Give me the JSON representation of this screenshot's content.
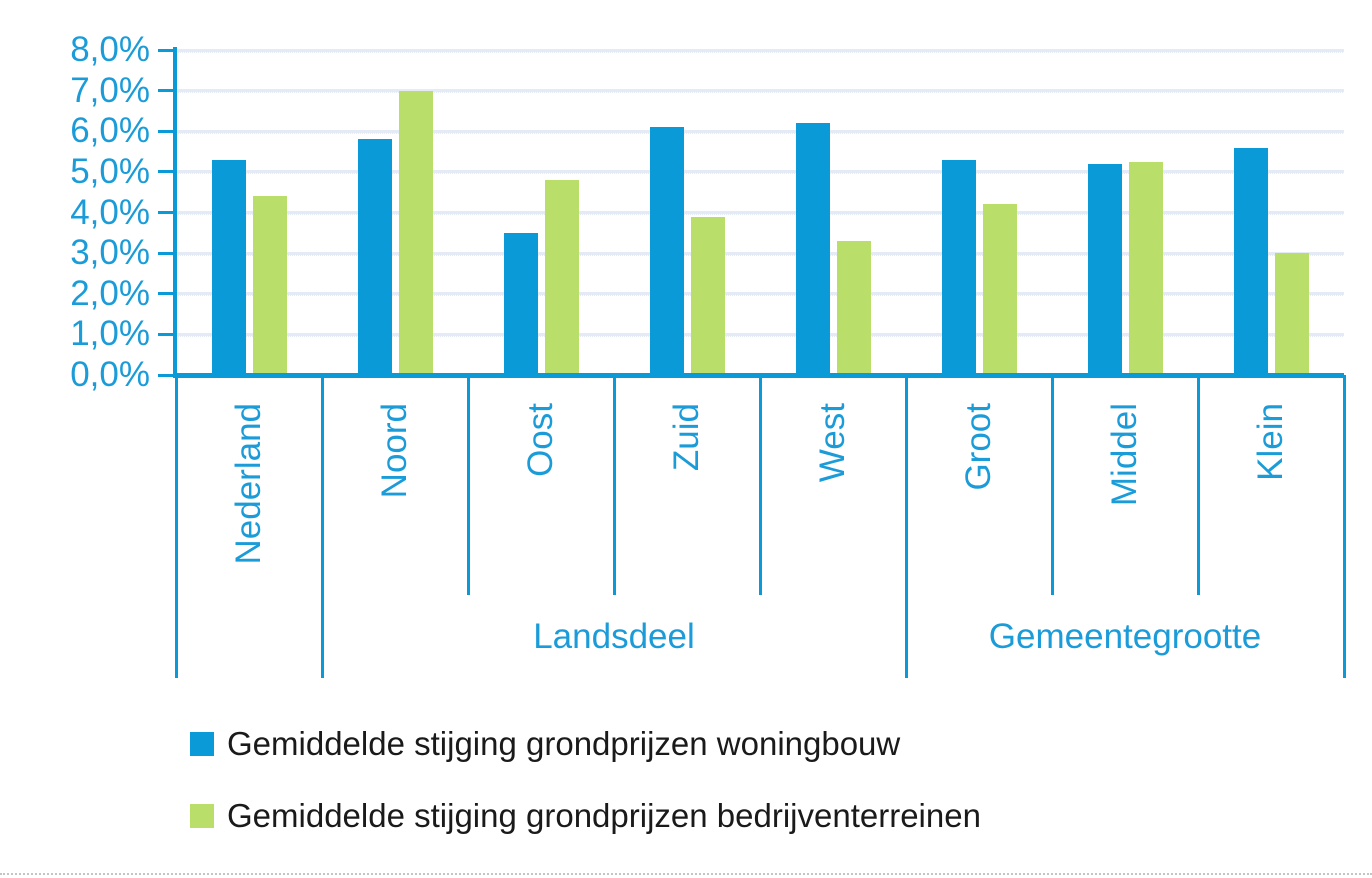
{
  "colors": {
    "bar_blue": "#0A9AD8",
    "bar_green": "#B9DE6A",
    "axis_blue": "#0A9AD8",
    "label_blue": "#1B9CD9",
    "grid": "#E4EBF6",
    "legend_text": "#1A1A1A"
  },
  "chart_data": {
    "type": "bar",
    "title": "",
    "xlabel": "",
    "ylabel": "",
    "ylim": [
      0,
      8
    ],
    "y_tick_step": 1,
    "y_tick_labels": [
      "0,0%",
      "1,0%",
      "2,0%",
      "3,0%",
      "4,0%",
      "5,0%",
      "6,0%",
      "7,0%",
      "8,0%"
    ],
    "grid": true,
    "legend_position": "bottom",
    "categories": [
      "Nederland",
      "Noord",
      "Oost",
      "Zuid",
      "West",
      "Groot",
      "Middel",
      "Klein"
    ],
    "groups": [
      {
        "label": "",
        "start": 0,
        "count": 1
      },
      {
        "label": "Landsdeel",
        "start": 1,
        "count": 4
      },
      {
        "label": "Gemeentegrootte",
        "start": 5,
        "count": 3
      }
    ],
    "series": [
      {
        "name": "Gemiddelde stijging grondprijzen woningbouw",
        "color": "#0A9AD8",
        "values": [
          5.3,
          5.8,
          3.5,
          6.1,
          6.2,
          5.3,
          5.2,
          5.6
        ]
      },
      {
        "name": "Gemiddelde stijging grondprijzen bedrijventerreinen",
        "color": "#B9DE6A",
        "values": [
          4.4,
          7.0,
          4.8,
          3.9,
          3.3,
          4.2,
          5.25,
          3.0
        ]
      }
    ]
  }
}
